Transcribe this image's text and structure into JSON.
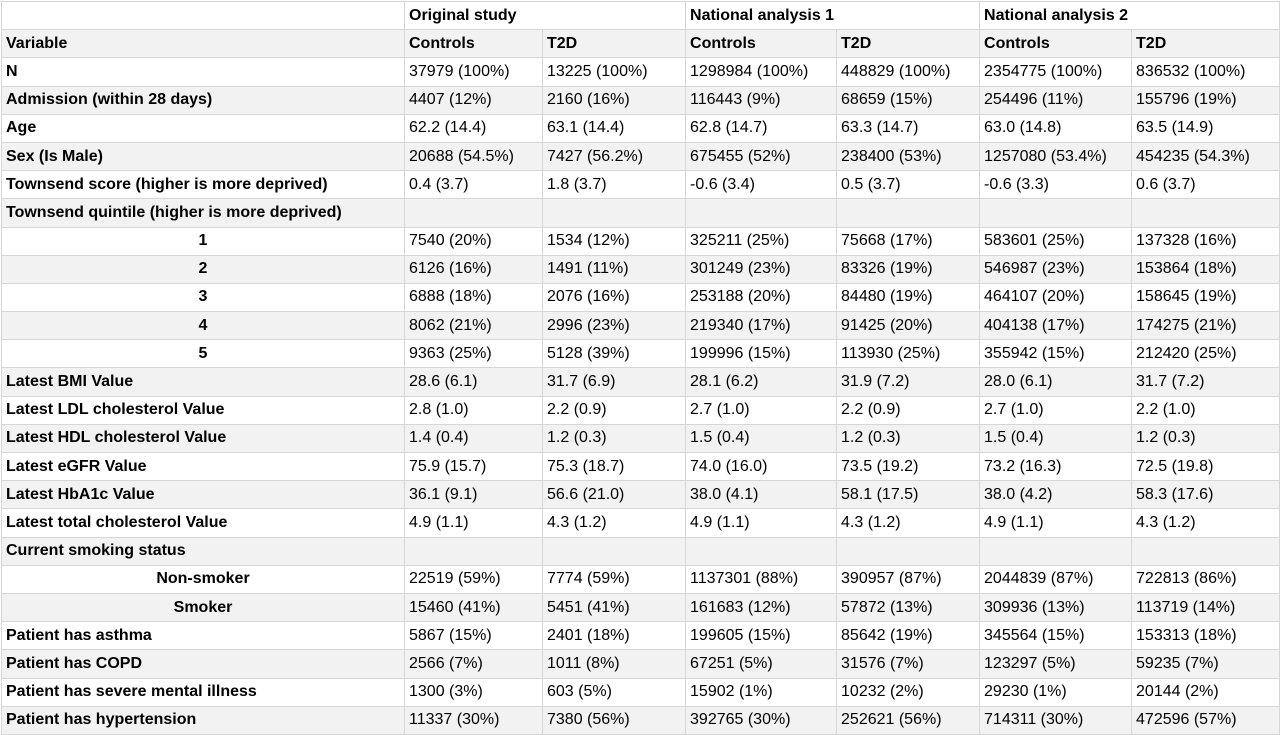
{
  "group_headers": [
    "",
    "Original study",
    "National analysis 1",
    "National analysis 2"
  ],
  "column_headers": [
    "Variable",
    "Controls",
    "T2D",
    "Controls",
    "T2D",
    "Controls",
    "T2D"
  ],
  "rows": [
    {
      "label": "N",
      "type": "var",
      "cells": [
        "37979 (100%)",
        "13225 (100%)",
        "1298984 (100%)",
        "448829 (100%)",
        "2354775 (100%)",
        "836532 (100%)"
      ]
    },
    {
      "label": "Admission (within 28 days)",
      "type": "var",
      "cells": [
        "4407 (12%)",
        "2160 (16%)",
        "116443 (9%)",
        "68659 (15%)",
        "254496 (11%)",
        "155796 (19%)"
      ]
    },
    {
      "label": "Age",
      "type": "var",
      "cells": [
        "62.2 (14.4)",
        "63.1 (14.4)",
        "62.8 (14.7)",
        "63.3 (14.7)",
        "63.0 (14.8)",
        "63.5 (14.9)"
      ]
    },
    {
      "label": "Sex (Is Male)",
      "type": "var",
      "cells": [
        "20688 (54.5%)",
        "7427 (56.2%)",
        "675455 (52%)",
        "238400 (53%)",
        "1257080 (53.4%)",
        "454235 (54.3%)"
      ]
    },
    {
      "label": "Townsend score (higher is more deprived)",
      "type": "var",
      "cells": [
        "0.4 (3.7)",
        "1.8 (3.7)",
        "-0.6 (3.4)",
        "0.5 (3.7)",
        "-0.6 (3.3)",
        "0.6 (3.7)"
      ]
    },
    {
      "label": "Townsend quintile (higher is more deprived)",
      "type": "var",
      "cells": [
        "",
        "",
        "",
        "",
        "",
        ""
      ]
    },
    {
      "label": "1",
      "type": "sub",
      "cells": [
        "7540 (20%)",
        "1534 (12%)",
        "325211 (25%)",
        "75668 (17%)",
        "583601 (25%)",
        "137328 (16%)"
      ]
    },
    {
      "label": "2",
      "type": "sub",
      "cells": [
        "6126 (16%)",
        "1491 (11%)",
        "301249 (23%)",
        "83326 (19%)",
        "546987 (23%)",
        "153864 (18%)"
      ]
    },
    {
      "label": "3",
      "type": "sub",
      "cells": [
        "6888 (18%)",
        "2076 (16%)",
        "253188 (20%)",
        "84480 (19%)",
        "464107 (20%)",
        "158645 (19%)"
      ]
    },
    {
      "label": "4",
      "type": "sub",
      "cells": [
        "8062 (21%)",
        "2996 (23%)",
        "219340 (17%)",
        "91425 (20%)",
        "404138 (17%)",
        "174275 (21%)"
      ]
    },
    {
      "label": "5",
      "type": "sub",
      "cells": [
        "9363 (25%)",
        "5128 (39%)",
        "199996 (15%)",
        "113930 (25%)",
        "355942 (15%)",
        "212420 (25%)"
      ]
    },
    {
      "label": "Latest BMI Value",
      "type": "var",
      "cells": [
        "28.6 (6.1)",
        "31.7 (6.9)",
        "28.1 (6.2)",
        "31.9 (7.2)",
        "28.0 (6.1)",
        "31.7 (7.2)"
      ]
    },
    {
      "label": "Latest LDL cholesterol Value",
      "type": "var",
      "cells": [
        "2.8 (1.0)",
        "2.2 (0.9)",
        "2.7 (1.0)",
        "2.2 (0.9)",
        "2.7 (1.0)",
        "2.2 (1.0)"
      ]
    },
    {
      "label": "Latest HDL cholesterol Value",
      "type": "var",
      "cells": [
        "1.4 (0.4)",
        "1.2 (0.3)",
        "1.5 (0.4)",
        "1.2 (0.3)",
        "1.5 (0.4)",
        "1.2 (0.3)"
      ]
    },
    {
      "label": "Latest eGFR Value",
      "type": "var",
      "cells": [
        "75.9 (15.7)",
        "75.3 (18.7)",
        "74.0 (16.0)",
        "73.5 (19.2)",
        "73.2 (16.3)",
        "72.5 (19.8)"
      ]
    },
    {
      "label": "Latest HbA1c Value",
      "type": "var",
      "cells": [
        "36.1 (9.1)",
        "56.6 (21.0)",
        "38.0 (4.1)",
        "58.1 (17.5)",
        "38.0 (4.2)",
        "58.3 (17.6)"
      ]
    },
    {
      "label": "Latest total cholesterol Value",
      "type": "var",
      "cells": [
        "4.9 (1.1)",
        "4.3 (1.2)",
        "4.9 (1.1)",
        "4.3 (1.2)",
        "4.9 (1.1)",
        "4.3 (1.2)"
      ]
    },
    {
      "label": "Current smoking status",
      "type": "var-plain",
      "cells": [
        "",
        "",
        "",
        "",
        "",
        ""
      ]
    },
    {
      "label": "Non-smoker",
      "type": "sub",
      "cells": [
        "22519 (59%)",
        "7774 (59%)",
        "1137301 (88%)",
        "390957 (87%)",
        "2044839 (87%)",
        "722813 (86%)"
      ]
    },
    {
      "label": "Smoker",
      "type": "sub",
      "cells": [
        "15460 (41%)",
        "5451 (41%)",
        "161683 (12%)",
        "57872 (13%)",
        "309936 (13%)",
        "113719 (14%)"
      ]
    },
    {
      "label": "Patient has asthma",
      "type": "var",
      "cells": [
        "5867 (15%)",
        "2401 (18%)",
        "199605 (15%)",
        "85642 (19%)",
        "345564 (15%)",
        "153313 (18%)"
      ]
    },
    {
      "label": "Patient has COPD",
      "type": "var",
      "cells": [
        "2566 (7%)",
        "1011 (8%)",
        "67251 (5%)",
        "31576 (7%)",
        "123297 (5%)",
        "59235 (7%)"
      ]
    },
    {
      "label": "Patient has severe mental illness",
      "type": "var",
      "cells": [
        "1300 (3%)",
        "603 (5%)",
        "15902 (1%)",
        "10232 (2%)",
        "29230 (1%)",
        "20144 (2%)"
      ]
    },
    {
      "label": "Patient has hypertension",
      "type": "var",
      "cells": [
        "11337 (30%)",
        "7380 (56%)",
        "392765 (30%)",
        "252621 (56%)",
        "714311 (30%)",
        "472596 (57%)"
      ]
    }
  ]
}
